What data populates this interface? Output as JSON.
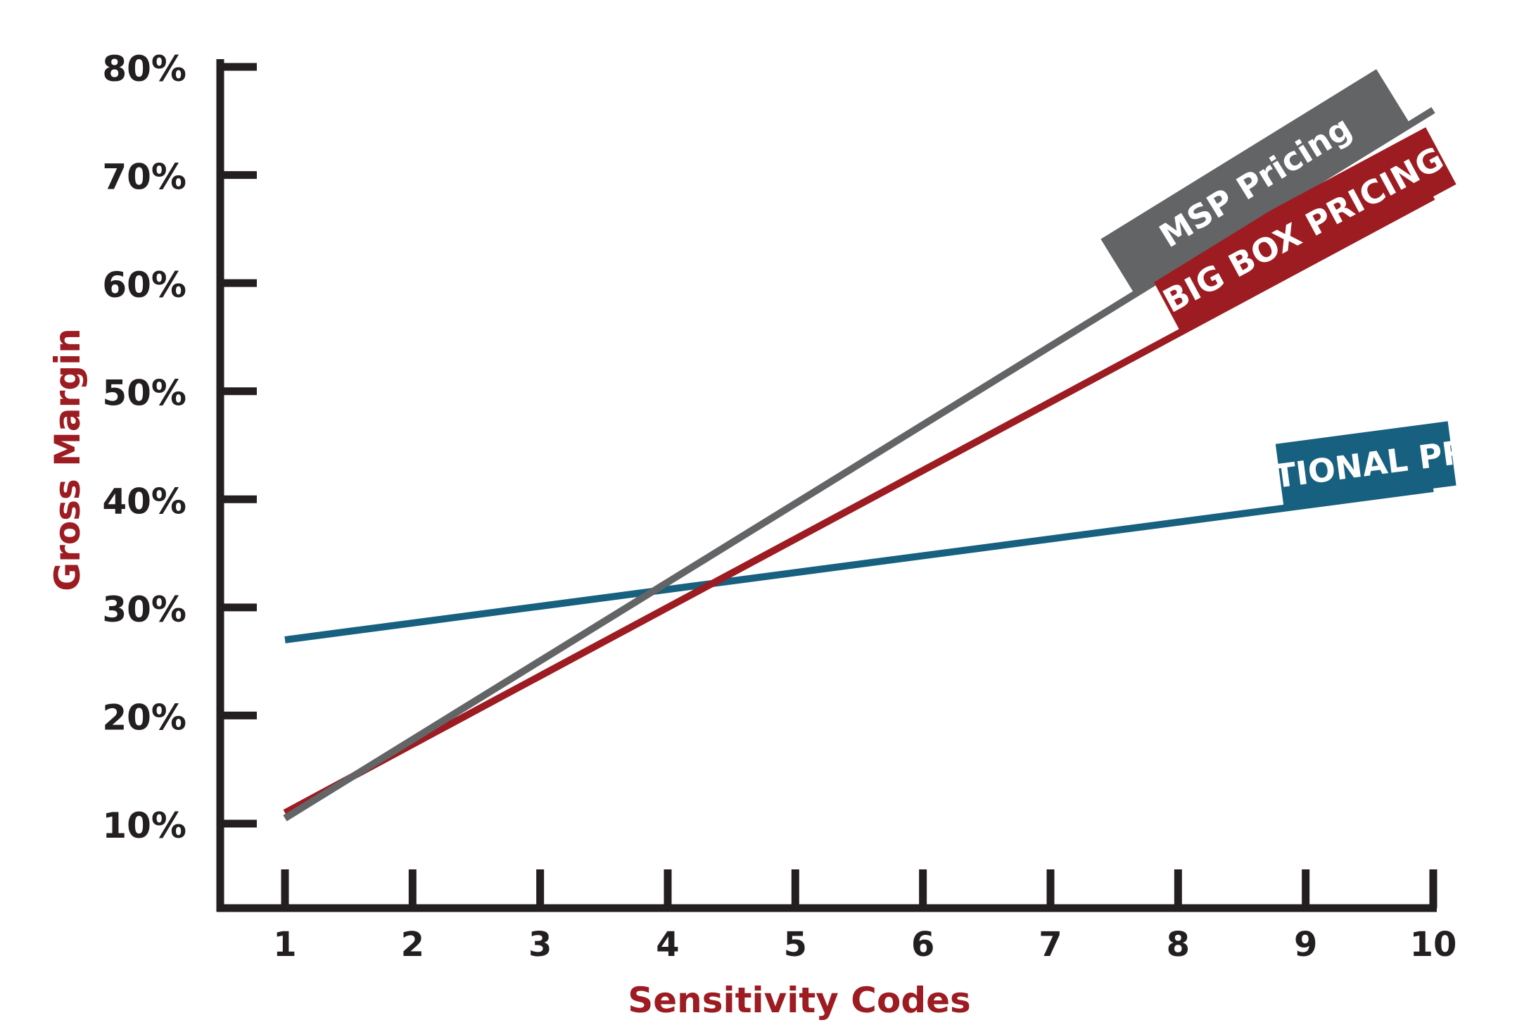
{
  "chart_data": {
    "type": "line",
    "xlabel": "Sensitivity Codes",
    "ylabel": "Gross Margin",
    "x": [
      1,
      2,
      3,
      4,
      5,
      6,
      7,
      8,
      9,
      10
    ],
    "x_ticks": [
      "1",
      "2",
      "3",
      "4",
      "5",
      "6",
      "7",
      "8",
      "9",
      "10"
    ],
    "y_ticks": [
      "10%",
      "20%",
      "30%",
      "40%",
      "50%",
      "60%",
      "70%",
      "80%"
    ],
    "y_tick_values": [
      10,
      20,
      30,
      40,
      50,
      60,
      70,
      80
    ],
    "xlim": [
      1,
      10
    ],
    "ylim": [
      0,
      80
    ],
    "grid": false,
    "legend": "inline labels",
    "series": [
      {
        "name": "TRADITIONAL PRICING",
        "color": "#17607f",
        "x": [
          1,
          10
        ],
        "y": [
          27,
          41
        ]
      },
      {
        "name": "BIG BOX PRICING",
        "color": "#9c1c22",
        "x": [
          1,
          10
        ],
        "y": [
          11,
          68
        ]
      },
      {
        "name": "MSP Pricing",
        "color": "#636466",
        "x": [
          1,
          10
        ],
        "y": [
          10.5,
          76
        ]
      }
    ]
  }
}
